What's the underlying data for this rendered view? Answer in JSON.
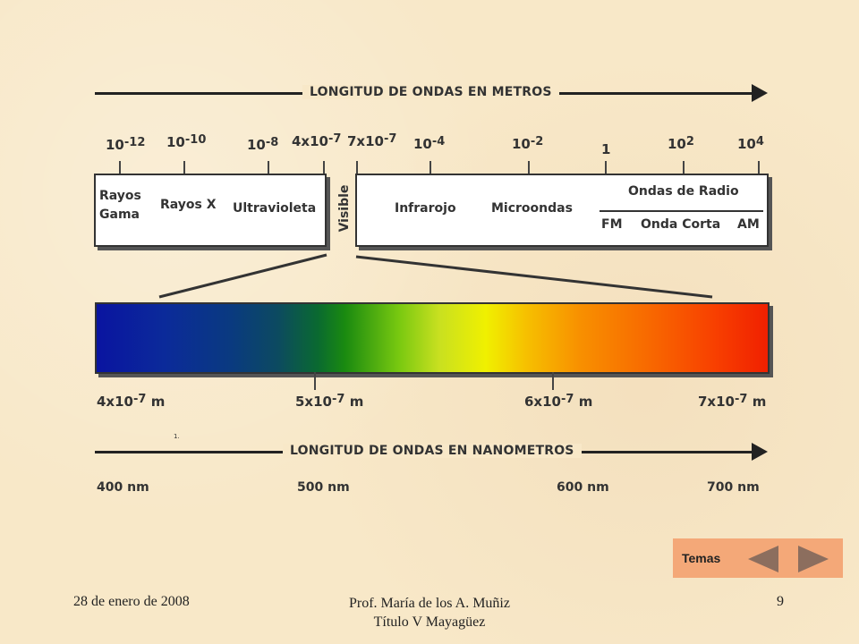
{
  "diagram": {
    "top_title": "LONGITUD DE ONDAS EN METROS",
    "bottom_title": "LONGITUD DE ONDAS EN NANOMETROS",
    "meter_scale": [
      {
        "base": "10",
        "exp": "-12"
      },
      {
        "base": "10",
        "exp": "-10"
      },
      {
        "base": "10",
        "exp": "-8"
      },
      {
        "base": "4x10",
        "exp": "-7"
      },
      {
        "base": "7x10",
        "exp": "-7"
      },
      {
        "base": "10",
        "exp": "-4"
      },
      {
        "base": "10",
        "exp": "-2"
      },
      {
        "base": "1",
        "exp": ""
      },
      {
        "base": "10",
        "exp": "2"
      },
      {
        "base": "10",
        "exp": "4"
      }
    ],
    "regions": {
      "rayos_gama_1": "Rayos",
      "rayos_gama_2": "Gama",
      "rayos_x": "Rayos X",
      "ultravioleta": "Ultravioleta",
      "visible": "Visible",
      "infrarojo": "Infrarojo",
      "microondas": "Microondas",
      "ondas_de_radio": "Ondas de Radio",
      "fm": "FM",
      "onda_corta": "Onda Corta",
      "am": "AM"
    },
    "visible_scale": [
      {
        "base": "4x10",
        "exp": "-7",
        "unit": "m"
      },
      {
        "base": "5x10",
        "exp": "-7",
        "unit": "m"
      },
      {
        "base": "6x10",
        "exp": "-7",
        "unit": "m"
      },
      {
        "base": "7x10",
        "exp": "-7",
        "unit": "m"
      }
    ],
    "footnote_mark": "1.",
    "nm_scale": [
      "400 nm",
      "500 nm",
      "600 nm",
      "700 nm"
    ]
  },
  "footer": {
    "date": "28 de enero de 2008",
    "author_line1": "Prof. María de los A. Muñiz",
    "author_line2": "Título V Mayagüez",
    "page_number": "9"
  },
  "nav": {
    "temas_label": "Temas"
  }
}
